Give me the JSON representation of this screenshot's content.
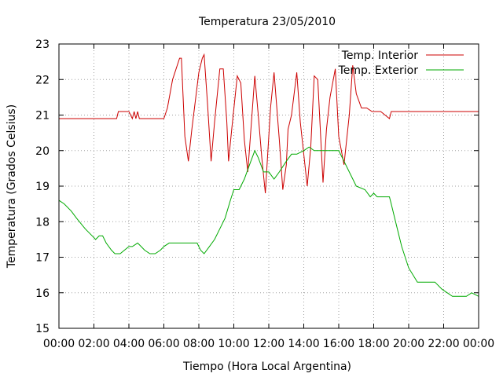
{
  "chart_data": {
    "type": "line",
    "title": "Temperatura 23/05/2010",
    "xlabel": "Tiempo (Hora Local Argentina)",
    "ylabel": "Temperatura (Grados Celsius)",
    "xlim": [
      0,
      24
    ],
    "ylim": [
      15,
      23
    ],
    "grid": true,
    "legend_position": "top-right",
    "x_tick_labels": [
      "00:00",
      "02:00",
      "04:00",
      "06:00",
      "08:00",
      "10:00",
      "12:00",
      "14:00",
      "16:00",
      "18:00",
      "20:00",
      "22:00",
      "00:00"
    ],
    "y_ticks": [
      15,
      16,
      17,
      18,
      19,
      20,
      21,
      22,
      23
    ],
    "series": [
      {
        "name": "Temp. Interior",
        "color": "#cc0000",
        "x": [
          0,
          3.3,
          3.4,
          4.0,
          4.2,
          4.3,
          4.4,
          4.5,
          4.6,
          6.0,
          6.2,
          6.5,
          6.9,
          7.0,
          7.1,
          7.2,
          7.4,
          7.6,
          8.0,
          8.2,
          8.3,
          8.5,
          8.7,
          8.9,
          9.2,
          9.4,
          9.6,
          9.7,
          9.9,
          10.2,
          10.4,
          10.6,
          10.8,
          11.2,
          11.4,
          11.6,
          11.8,
          12.1,
          12.3,
          12.6,
          12.8,
          13.0,
          13.1,
          13.3,
          13.6,
          13.8,
          14.2,
          14.4,
          14.6,
          14.8,
          15.1,
          15.3,
          15.5,
          15.8,
          16.0,
          16.3,
          16.6,
          16.8,
          17.0,
          17.3,
          17.6,
          17.9,
          18.1,
          18.4,
          18.9,
          19.0,
          19.2,
          24.0
        ],
        "values": [
          20.9,
          20.9,
          21.1,
          21.1,
          20.9,
          21.1,
          20.9,
          21.1,
          20.9,
          20.9,
          21.2,
          22.0,
          22.6,
          22.6,
          21.5,
          20.4,
          19.7,
          20.6,
          22.2,
          22.6,
          22.7,
          21.3,
          19.7,
          20.8,
          22.3,
          22.3,
          20.8,
          19.7,
          20.7,
          22.1,
          21.9,
          20.3,
          19.4,
          22.1,
          21.0,
          19.8,
          18.8,
          21.2,
          22.2,
          20.3,
          18.9,
          19.6,
          20.6,
          21.0,
          22.2,
          20.8,
          19.0,
          20.1,
          22.1,
          22.0,
          19.1,
          20.6,
          21.5,
          22.3,
          20.4,
          19.6,
          21.0,
          22.4,
          21.6,
          21.2,
          21.2,
          21.1,
          21.1,
          21.1,
          20.9,
          21.1,
          21.1,
          21.1
        ]
      },
      {
        "name": "Temp. Exterior",
        "color": "#00aa00",
        "x": [
          0,
          0.3,
          0.7,
          1.0,
          1.5,
          1.9,
          2.1,
          2.3,
          2.5,
          2.7,
          3.0,
          3.2,
          3.5,
          4.0,
          4.2,
          4.5,
          4.7,
          4.9,
          5.2,
          5.5,
          5.8,
          6.0,
          6.3,
          7.0,
          7.5,
          7.9,
          8.1,
          8.3,
          8.6,
          8.9,
          9.2,
          9.5,
          9.8,
          10.0,
          10.3,
          10.6,
          10.9,
          11.2,
          11.4,
          11.7,
          12.0,
          12.3,
          12.6,
          13.0,
          13.3,
          13.6,
          14.0,
          14.3,
          14.6,
          15.0,
          16.0,
          16.3,
          16.7,
          17.0,
          17.5,
          17.8,
          18.0,
          18.2,
          18.5,
          18.9,
          19.0,
          19.2,
          19.6,
          20.0,
          20.5,
          21.0,
          21.5,
          21.9,
          22.5,
          23.0,
          23.3,
          23.6,
          24.0
        ],
        "values": [
          18.6,
          18.5,
          18.3,
          18.1,
          17.8,
          17.6,
          17.5,
          17.6,
          17.6,
          17.4,
          17.2,
          17.1,
          17.1,
          17.3,
          17.3,
          17.4,
          17.3,
          17.2,
          17.1,
          17.1,
          17.2,
          17.3,
          17.4,
          17.4,
          17.4,
          17.4,
          17.2,
          17.1,
          17.3,
          17.5,
          17.8,
          18.1,
          18.6,
          18.9,
          18.9,
          19.2,
          19.6,
          20.0,
          19.8,
          19.4,
          19.4,
          19.2,
          19.4,
          19.7,
          19.9,
          19.9,
          20.0,
          20.1,
          20.0,
          20.0,
          20.0,
          19.7,
          19.3,
          19.0,
          18.9,
          18.7,
          18.8,
          18.7,
          18.7,
          18.7,
          18.5,
          18.1,
          17.3,
          16.7,
          16.3,
          16.3,
          16.3,
          16.1,
          15.9,
          15.9,
          15.9,
          16.0,
          15.9
        ]
      }
    ]
  }
}
